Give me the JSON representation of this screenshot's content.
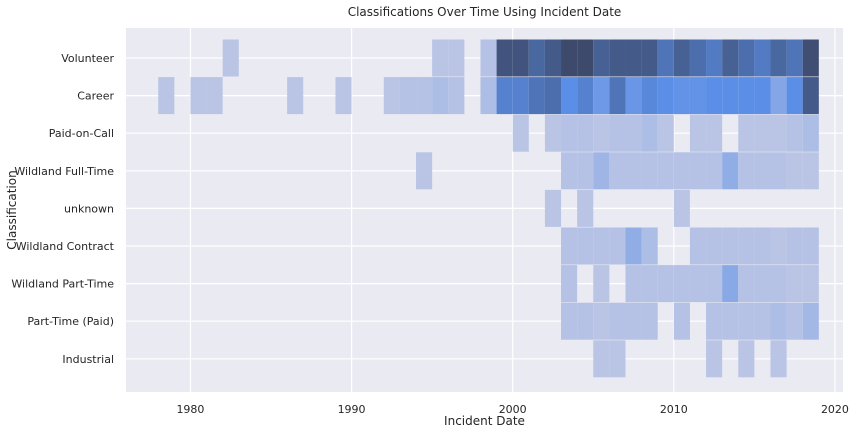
{
  "chart_data": {
    "type": "heatmap",
    "title": "Classifications Over Time Using Incident Date",
    "xlabel": "Incident Date",
    "ylabel": "Classification",
    "xlim": [
      1976.0,
      2020.5
    ],
    "x_ticks": [
      1980,
      1990,
      2000,
      2010,
      2020
    ],
    "grid": true,
    "bin_width": 1,
    "categories": [
      "Volunteer",
      "Career",
      "Paid-on-Call",
      "Wildland Full-Time",
      "unknown",
      "Wildland Contract",
      "Wildland Part-Time",
      "Part-Time (Paid)",
      "Industrial"
    ],
    "value_scale": "relative intensity 0-1",
    "colors": {
      "background": "#eaeaf2",
      "grid": "#ffffff",
      "low": "#bac5e6",
      "mid": "#5b8ee6",
      "high": "#3d4a6b"
    },
    "cells": {
      "Volunteer": [
        [
          1982,
          0.1
        ],
        [
          1995,
          0.1
        ],
        [
          1996,
          0.1
        ],
        [
          1998,
          0.12
        ],
        [
          1999,
          0.9
        ],
        [
          2000,
          0.9
        ],
        [
          2001,
          0.75
        ],
        [
          2002,
          0.85
        ],
        [
          2003,
          0.98
        ],
        [
          2004,
          0.98
        ],
        [
          2005,
          0.8
        ],
        [
          2006,
          0.85
        ],
        [
          2007,
          0.85
        ],
        [
          2008,
          0.85
        ],
        [
          2009,
          0.65
        ],
        [
          2010,
          0.8
        ],
        [
          2011,
          0.7
        ],
        [
          2012,
          0.6
        ],
        [
          2013,
          0.8
        ],
        [
          2014,
          0.7
        ],
        [
          2015,
          0.6
        ],
        [
          2016,
          0.75
        ],
        [
          2017,
          0.65
        ],
        [
          2018,
          0.95
        ]
      ],
      "Career": [
        [
          1978,
          0.1
        ],
        [
          1980,
          0.1
        ],
        [
          1981,
          0.1
        ],
        [
          1986,
          0.1
        ],
        [
          1989,
          0.1
        ],
        [
          1992,
          0.1
        ],
        [
          1993,
          0.12
        ],
        [
          1994,
          0.12
        ],
        [
          1995,
          0.15
        ],
        [
          1996,
          0.12
        ],
        [
          1998,
          0.15
        ],
        [
          1999,
          0.55
        ],
        [
          2000,
          0.55
        ],
        [
          2001,
          0.65
        ],
        [
          2002,
          0.7
        ],
        [
          2003,
          0.45
        ],
        [
          2004,
          0.55
        ],
        [
          2005,
          0.38
        ],
        [
          2006,
          0.65
        ],
        [
          2007,
          0.4
        ],
        [
          2008,
          0.5
        ],
        [
          2009,
          0.45
        ],
        [
          2010,
          0.42
        ],
        [
          2011,
          0.42
        ],
        [
          2012,
          0.45
        ],
        [
          2013,
          0.45
        ],
        [
          2014,
          0.45
        ],
        [
          2015,
          0.45
        ],
        [
          2016,
          0.3
        ],
        [
          2017,
          0.45
        ],
        [
          2018,
          0.85
        ]
      ],
      "Paid-on-Call": [
        [
          2000,
          0.1
        ],
        [
          2002,
          0.1
        ],
        [
          2003,
          0.12
        ],
        [
          2004,
          0.12
        ],
        [
          2005,
          0.1
        ],
        [
          2006,
          0.12
        ],
        [
          2007,
          0.12
        ],
        [
          2008,
          0.15
        ],
        [
          2009,
          0.1
        ],
        [
          2011,
          0.1
        ],
        [
          2012,
          0.1
        ],
        [
          2014,
          0.1
        ],
        [
          2015,
          0.1
        ],
        [
          2016,
          0.1
        ],
        [
          2017,
          0.12
        ],
        [
          2018,
          0.15
        ]
      ],
      "Wildland Full-Time": [
        [
          1994,
          0.1
        ],
        [
          2003,
          0.12
        ],
        [
          2004,
          0.12
        ],
        [
          2005,
          0.2
        ],
        [
          2006,
          0.12
        ],
        [
          2007,
          0.12
        ],
        [
          2008,
          0.12
        ],
        [
          2009,
          0.12
        ],
        [
          2010,
          0.12
        ],
        [
          2011,
          0.12
        ],
        [
          2012,
          0.12
        ],
        [
          2013,
          0.25
        ],
        [
          2014,
          0.12
        ],
        [
          2015,
          0.12
        ],
        [
          2016,
          0.12
        ],
        [
          2017,
          0.1
        ],
        [
          2018,
          0.1
        ]
      ],
      "unknown": [
        [
          2002,
          0.1
        ],
        [
          2004,
          0.1
        ],
        [
          2010,
          0.1
        ]
      ],
      "Wildland Contract": [
        [
          2003,
          0.12
        ],
        [
          2004,
          0.12
        ],
        [
          2005,
          0.12
        ],
        [
          2006,
          0.12
        ],
        [
          2007,
          0.25
        ],
        [
          2008,
          0.15
        ],
        [
          2011,
          0.12
        ],
        [
          2012,
          0.12
        ],
        [
          2013,
          0.12
        ],
        [
          2014,
          0.12
        ],
        [
          2015,
          0.12
        ],
        [
          2016,
          0.1
        ],
        [
          2017,
          0.12
        ],
        [
          2018,
          0.12
        ]
      ],
      "Wildland Part-Time": [
        [
          2003,
          0.12
        ],
        [
          2005,
          0.1
        ],
        [
          2007,
          0.12
        ],
        [
          2008,
          0.12
        ],
        [
          2009,
          0.12
        ],
        [
          2010,
          0.12
        ],
        [
          2011,
          0.12
        ],
        [
          2012,
          0.12
        ],
        [
          2013,
          0.28
        ],
        [
          2014,
          0.12
        ],
        [
          2015,
          0.12
        ],
        [
          2016,
          0.12
        ],
        [
          2017,
          0.1
        ],
        [
          2018,
          0.1
        ]
      ],
      "Part-Time (Paid)": [
        [
          2003,
          0.12
        ],
        [
          2004,
          0.12
        ],
        [
          2005,
          0.1
        ],
        [
          2006,
          0.12
        ],
        [
          2007,
          0.12
        ],
        [
          2008,
          0.12
        ],
        [
          2010,
          0.12
        ],
        [
          2012,
          0.12
        ],
        [
          2013,
          0.12
        ],
        [
          2014,
          0.12
        ],
        [
          2015,
          0.12
        ],
        [
          2016,
          0.15
        ],
        [
          2017,
          0.12
        ],
        [
          2018,
          0.18
        ]
      ],
      "Industrial": [
        [
          2005,
          0.1
        ],
        [
          2006,
          0.1
        ],
        [
          2012,
          0.1
        ],
        [
          2014,
          0.1
        ],
        [
          2016,
          0.1
        ]
      ]
    }
  }
}
